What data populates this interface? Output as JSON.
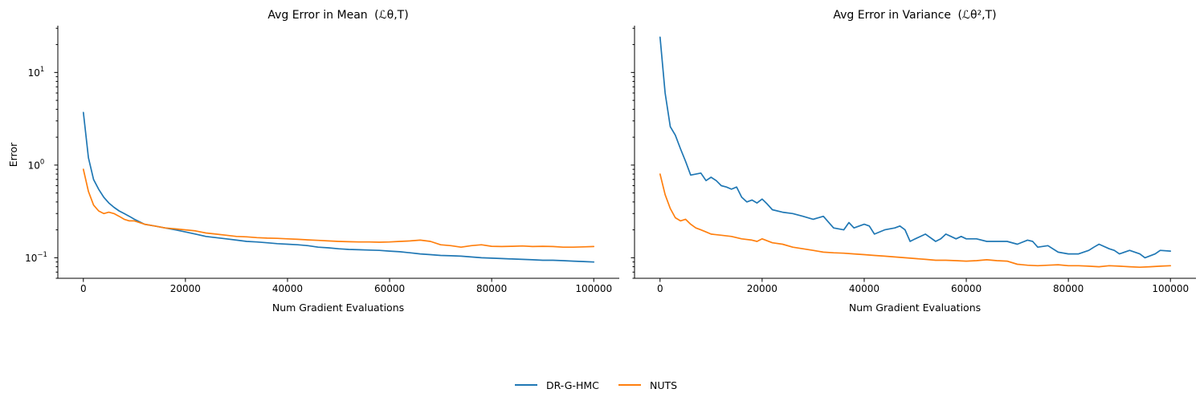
{
  "colors": {
    "dr_g_hmc": "#1f77b4",
    "nuts": "#ff7f0e"
  },
  "legend": {
    "placement": "bottom-center",
    "entries": [
      "DR-G-HMC",
      "NUTS"
    ]
  },
  "chart_data": [
    {
      "type": "line",
      "title": "Avg Error in Mean",
      "title_math": "(ℒθ,T)",
      "xlabel": "Num Gradient Evaluations",
      "ylabel": "Error",
      "yscale": "log",
      "xlim": [
        -5000,
        105000
      ],
      "ylim": [
        0.06,
        32
      ],
      "xticks": [
        0,
        20000,
        40000,
        60000,
        80000,
        100000
      ],
      "xtick_labels": [
        "0",
        "20000",
        "40000",
        "60000",
        "80000",
        "100000"
      ],
      "yticks": [
        0.1,
        1,
        10
      ],
      "ytick_labels": [
        "10",
        "10",
        "10"
      ],
      "ytick_exponents": [
        "−1",
        "0",
        "1"
      ],
      "grid": false,
      "series": [
        {
          "name": "DR-G-HMC",
          "color": "#1f77b4",
          "x": [
            0,
            1000,
            2000,
            3000,
            4000,
            5000,
            6000,
            7000,
            8000,
            9000,
            10000,
            12000,
            14000,
            16000,
            18000,
            20000,
            22000,
            24000,
            26000,
            28000,
            30000,
            32000,
            34000,
            36000,
            38000,
            40000,
            42000,
            44000,
            46000,
            48000,
            50000,
            52000,
            54000,
            56000,
            58000,
            60000,
            62000,
            64000,
            66000,
            68000,
            70000,
            72000,
            74000,
            76000,
            78000,
            80000,
            82000,
            84000,
            86000,
            88000,
            90000,
            92000,
            94000,
            96000,
            98000,
            100000
          ],
          "y": [
            3.7,
            1.2,
            0.7,
            0.55,
            0.45,
            0.39,
            0.35,
            0.32,
            0.3,
            0.28,
            0.26,
            0.23,
            0.22,
            0.21,
            0.2,
            0.19,
            0.18,
            0.17,
            0.165,
            0.16,
            0.155,
            0.15,
            0.148,
            0.145,
            0.142,
            0.14,
            0.138,
            0.135,
            0.13,
            0.128,
            0.125,
            0.123,
            0.122,
            0.121,
            0.12,
            0.118,
            0.116,
            0.113,
            0.11,
            0.108,
            0.106,
            0.105,
            0.104,
            0.102,
            0.1,
            0.099,
            0.098,
            0.097,
            0.096,
            0.095,
            0.094,
            0.094,
            0.093,
            0.092,
            0.091,
            0.09
          ]
        },
        {
          "name": "NUTS",
          "color": "#ff7f0e",
          "x": [
            0,
            1000,
            2000,
            3000,
            4000,
            5000,
            6000,
            7000,
            8000,
            9000,
            10000,
            12000,
            14000,
            16000,
            18000,
            20000,
            22000,
            24000,
            26000,
            28000,
            30000,
            32000,
            34000,
            36000,
            38000,
            40000,
            42000,
            44000,
            46000,
            48000,
            50000,
            52000,
            54000,
            56000,
            58000,
            60000,
            62000,
            64000,
            66000,
            68000,
            70000,
            72000,
            74000,
            76000,
            78000,
            80000,
            82000,
            84000,
            86000,
            88000,
            90000,
            92000,
            94000,
            96000,
            98000,
            100000
          ],
          "y": [
            0.9,
            0.52,
            0.37,
            0.32,
            0.3,
            0.31,
            0.3,
            0.28,
            0.26,
            0.25,
            0.25,
            0.23,
            0.22,
            0.21,
            0.205,
            0.2,
            0.195,
            0.185,
            0.18,
            0.175,
            0.17,
            0.168,
            0.165,
            0.163,
            0.162,
            0.16,
            0.158,
            0.156,
            0.154,
            0.152,
            0.15,
            0.149,
            0.148,
            0.148,
            0.147,
            0.148,
            0.15,
            0.152,
            0.155,
            0.15,
            0.138,
            0.135,
            0.13,
            0.135,
            0.138,
            0.133,
            0.132,
            0.133,
            0.134,
            0.132,
            0.133,
            0.132,
            0.13,
            0.13,
            0.131,
            0.132
          ]
        }
      ]
    },
    {
      "type": "line",
      "title": "Avg Error in Variance",
      "title_math": "(ℒθ²,T)",
      "xlabel": "Num Gradient Evaluations",
      "ylabel": "",
      "yscale": "log",
      "sharey": true,
      "xlim": [
        -5000,
        105000
      ],
      "ylim": [
        0.06,
        32
      ],
      "xticks": [
        0,
        20000,
        40000,
        60000,
        80000,
        100000
      ],
      "xtick_labels": [
        "0",
        "20000",
        "40000",
        "60000",
        "80000",
        "100000"
      ],
      "grid": false,
      "series": [
        {
          "name": "DR-G-HMC",
          "color": "#1f77b4",
          "x": [
            0,
            1000,
            2000,
            3000,
            4000,
            5000,
            6000,
            7000,
            8000,
            9000,
            10000,
            11000,
            12000,
            13000,
            14000,
            15000,
            16000,
            17000,
            18000,
            19000,
            20000,
            21000,
            22000,
            24000,
            26000,
            28000,
            30000,
            32000,
            34000,
            36000,
            37000,
            38000,
            40000,
            41000,
            42000,
            44000,
            46000,
            47000,
            48000,
            49000,
            50000,
            52000,
            54000,
            55000,
            56000,
            57000,
            58000,
            59000,
            60000,
            62000,
            64000,
            66000,
            68000,
            70000,
            72000,
            73000,
            74000,
            76000,
            78000,
            80000,
            82000,
            84000,
            85000,
            86000,
            88000,
            89000,
            90000,
            92000,
            94000,
            95000,
            97000,
            98000,
            100000
          ],
          "y": [
            24,
            6,
            2.6,
            2.1,
            1.5,
            1.1,
            0.78,
            0.8,
            0.82,
            0.68,
            0.74,
            0.68,
            0.6,
            0.58,
            0.55,
            0.58,
            0.45,
            0.4,
            0.42,
            0.39,
            0.43,
            0.38,
            0.33,
            0.31,
            0.3,
            0.28,
            0.26,
            0.28,
            0.21,
            0.2,
            0.24,
            0.21,
            0.23,
            0.22,
            0.18,
            0.2,
            0.21,
            0.22,
            0.2,
            0.15,
            0.16,
            0.18,
            0.15,
            0.16,
            0.18,
            0.17,
            0.16,
            0.17,
            0.16,
            0.16,
            0.15,
            0.15,
            0.15,
            0.14,
            0.155,
            0.15,
            0.13,
            0.135,
            0.115,
            0.11,
            0.11,
            0.12,
            0.13,
            0.14,
            0.125,
            0.12,
            0.11,
            0.12,
            0.11,
            0.1,
            0.11,
            0.12,
            0.118
          ]
        },
        {
          "name": "NUTS",
          "color": "#ff7f0e",
          "x": [
            0,
            1000,
            2000,
            3000,
            4000,
            5000,
            6000,
            7000,
            8000,
            9000,
            10000,
            12000,
            14000,
            16000,
            18000,
            19000,
            20000,
            22000,
            24000,
            26000,
            28000,
            30000,
            32000,
            34000,
            36000,
            38000,
            40000,
            42000,
            44000,
            46000,
            48000,
            50000,
            52000,
            54000,
            56000,
            58000,
            60000,
            62000,
            64000,
            66000,
            68000,
            70000,
            72000,
            74000,
            76000,
            78000,
            80000,
            82000,
            84000,
            86000,
            88000,
            90000,
            92000,
            94000,
            96000,
            98000,
            100000
          ],
          "y": [
            0.8,
            0.48,
            0.34,
            0.27,
            0.25,
            0.26,
            0.23,
            0.21,
            0.2,
            0.19,
            0.18,
            0.175,
            0.17,
            0.16,
            0.155,
            0.15,
            0.16,
            0.145,
            0.14,
            0.13,
            0.125,
            0.12,
            0.115,
            0.113,
            0.112,
            0.11,
            0.108,
            0.106,
            0.104,
            0.102,
            0.1,
            0.098,
            0.096,
            0.094,
            0.094,
            0.093,
            0.092,
            0.093,
            0.095,
            0.093,
            0.092,
            0.085,
            0.083,
            0.082,
            0.083,
            0.084,
            0.082,
            0.082,
            0.081,
            0.08,
            0.082,
            0.081,
            0.08,
            0.079,
            0.08,
            0.081,
            0.082
          ]
        }
      ]
    }
  ]
}
